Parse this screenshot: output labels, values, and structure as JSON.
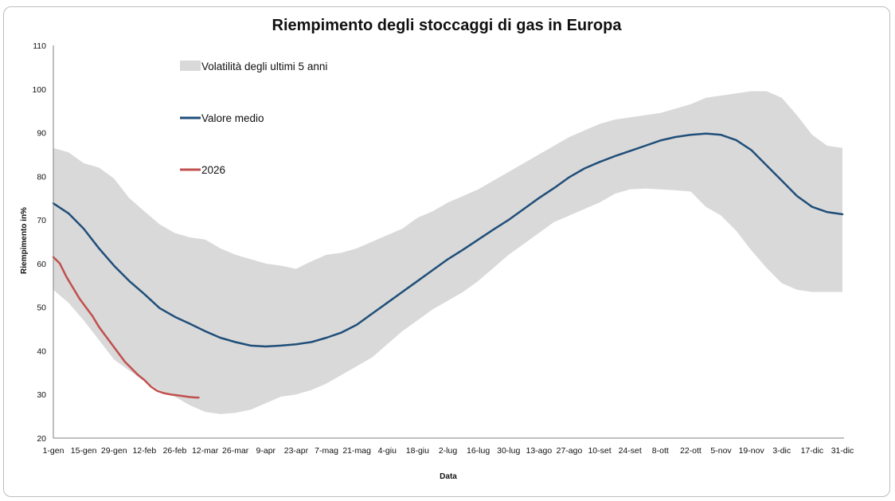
{
  "chart_data": {
    "type": "area",
    "title": "Riempimento degli stoccaggi di gas in Europa",
    "xlabel": "Data",
    "ylabel": "Riempimento in%",
    "ylim": [
      20,
      110
    ],
    "yticks": [
      20,
      30,
      40,
      50,
      60,
      70,
      80,
      90,
      100,
      110
    ],
    "xticks": [
      "1-gen",
      "15-gen",
      "29-gen",
      "12-feb",
      "26-feb",
      "12-mar",
      "26-mar",
      "9-apr",
      "23-apr",
      "7-mag",
      "21-mag",
      "4-giu",
      "18-giu",
      "2-lug",
      "16-lug",
      "30-lug",
      "13-ago",
      "27-ago",
      "10-set",
      "24-set",
      "8-ott",
      "22-ott",
      "5-nov",
      "19-nov",
      "3-dic",
      "17-dic",
      "31-dic"
    ],
    "legend_position": "top-left",
    "grid": false,
    "colors": {
      "band": "#d9d9d9",
      "mean": "#1f4e79",
      "current": "#c0504d"
    },
    "series": [
      {
        "name": "Volatilità degli ultimi 5 anni",
        "kind": "band",
        "x": [
          0,
          7,
          14,
          21,
          28,
          35,
          42,
          49,
          56,
          63,
          70,
          77,
          84,
          91,
          98,
          105,
          112,
          119,
          126,
          133,
          140,
          147,
          154,
          161,
          168,
          175,
          182,
          189,
          196,
          203,
          210,
          217,
          224,
          231,
          238,
          245,
          252,
          259,
          266,
          273,
          280,
          287,
          294,
          301,
          308,
          315,
          322,
          329,
          336,
          343,
          350,
          357,
          364
        ],
        "upper": [
          86.5,
          85.5,
          83,
          82,
          79.5,
          75,
          72,
          69,
          67,
          66,
          65.5,
          63.5,
          62,
          61,
          60,
          59.5,
          58.8,
          60.5,
          62,
          62.5,
          63.5,
          65,
          66.5,
          68,
          70.5,
          72,
          74,
          75.5,
          77,
          79,
          81,
          83,
          85,
          87,
          89,
          90.5,
          92,
          93,
          93.5,
          94,
          94.5,
          95.5,
          96.5,
          98,
          98.5,
          99,
          99.5,
          99.5,
          98,
          94,
          89.5,
          87,
          86.5
        ],
        "lower": [
          54,
          51,
          47,
          42.5,
          38,
          35.5,
          33,
          31,
          29.5,
          27.5,
          26,
          25.5,
          25.8,
          26.5,
          28,
          29.5,
          30,
          31,
          32.5,
          34.5,
          36.5,
          38.5,
          41.5,
          44.5,
          47,
          49.5,
          51.5,
          53.5,
          56,
          59,
          62,
          64.5,
          67,
          69.5,
          71,
          72.5,
          74,
          76,
          77,
          77.2,
          77,
          76.8,
          76.5,
          73,
          71,
          67.5,
          63,
          59,
          55.5,
          54,
          53.5,
          53.5,
          53.5
        ]
      },
      {
        "name": "Valore medio",
        "kind": "line",
        "x": [
          0,
          7,
          14,
          21,
          28,
          35,
          42,
          49,
          56,
          63,
          70,
          77,
          84,
          91,
          98,
          105,
          112,
          119,
          126,
          133,
          140,
          147,
          154,
          161,
          168,
          175,
          182,
          189,
          196,
          203,
          210,
          217,
          224,
          231,
          238,
          245,
          252,
          259,
          266,
          273,
          280,
          287,
          294,
          301,
          308,
          315,
          322,
          329,
          336,
          343,
          350,
          357,
          364
        ],
        "values": [
          73.8,
          71.5,
          68,
          63.5,
          59.5,
          56,
          53,
          49.8,
          47.8,
          46.2,
          44.5,
          43,
          42,
          41.2,
          41,
          41.2,
          41.5,
          42,
          43,
          44.2,
          46,
          48.5,
          51,
          53.5,
          56,
          58.5,
          61,
          63.2,
          65.5,
          67.8,
          70,
          72.5,
          75,
          77.3,
          79.8,
          81.8,
          83.3,
          84.6,
          85.8,
          87,
          88.2,
          89,
          89.5,
          89.8,
          89.5,
          88.3,
          86,
          82.5,
          79,
          75.5,
          73,
          71.8,
          71.3
        ]
      },
      {
        "name": "2026",
        "kind": "line",
        "x": [
          0,
          3,
          6,
          9,
          12,
          15,
          18,
          21,
          24,
          27,
          30,
          33,
          36,
          39,
          42,
          45,
          48,
          51,
          54,
          57,
          60,
          63,
          66,
          67
        ],
        "values": [
          61.5,
          60,
          57,
          54.5,
          52,
          50,
          48,
          45.5,
          43.5,
          41.5,
          39.5,
          37.5,
          36,
          34.5,
          33.3,
          31.8,
          30.8,
          30.3,
          30,
          29.8,
          29.6,
          29.4,
          29.3,
          29.3
        ]
      }
    ]
  }
}
